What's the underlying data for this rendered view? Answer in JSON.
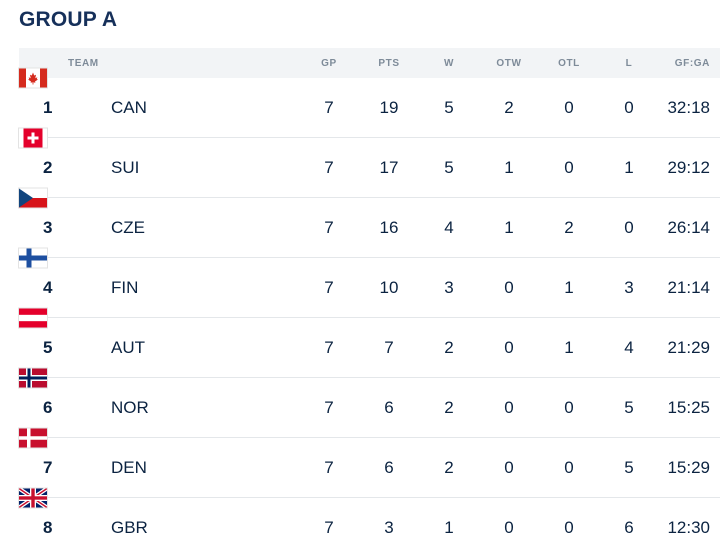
{
  "title": "GROUP A",
  "headers": {
    "team": "TEAM",
    "gp": "GP",
    "pts": "PTS",
    "w": "W",
    "otw": "OTW",
    "otl": "OTL",
    "l": "L",
    "gfga": "GF:GA"
  },
  "rows": [
    {
      "rank": "1",
      "team": "CAN",
      "flag": "canada-flag-icon",
      "gp": "7",
      "pts": "19",
      "w": "5",
      "otw": "2",
      "otl": "0",
      "l": "0",
      "gfga": "32:18"
    },
    {
      "rank": "2",
      "team": "SUI",
      "flag": "switzerland-flag-icon",
      "gp": "7",
      "pts": "17",
      "w": "5",
      "otw": "1",
      "otl": "0",
      "l": "1",
      "gfga": "29:12"
    },
    {
      "rank": "3",
      "team": "CZE",
      "flag": "czechia-flag-icon",
      "gp": "7",
      "pts": "16",
      "w": "4",
      "otw": "1",
      "otl": "2",
      "l": "0",
      "gfga": "26:14"
    },
    {
      "rank": "4",
      "team": "FIN",
      "flag": "finland-flag-icon",
      "gp": "7",
      "pts": "10",
      "w": "3",
      "otw": "0",
      "otl": "1",
      "l": "3",
      "gfga": "21:14"
    },
    {
      "rank": "5",
      "team": "AUT",
      "flag": "austria-flag-icon",
      "gp": "7",
      "pts": "7",
      "w": "2",
      "otw": "0",
      "otl": "1",
      "l": "4",
      "gfga": "21:29"
    },
    {
      "rank": "6",
      "team": "NOR",
      "flag": "norway-flag-icon",
      "gp": "7",
      "pts": "6",
      "w": "2",
      "otw": "0",
      "otl": "0",
      "l": "5",
      "gfga": "15:25"
    },
    {
      "rank": "7",
      "team": "DEN",
      "flag": "denmark-flag-icon",
      "gp": "7",
      "pts": "6",
      "w": "2",
      "otw": "0",
      "otl": "0",
      "l": "5",
      "gfga": "15:29"
    },
    {
      "rank": "8",
      "team": "GBR",
      "flag": "great-britain-flag-icon",
      "gp": "7",
      "pts": "3",
      "w": "1",
      "otw": "0",
      "otl": "0",
      "l": "6",
      "gfga": "12:30"
    }
  ],
  "colors": {
    "title": "#16305a",
    "text": "#0b2341",
    "header_bg": "#f2f4f6",
    "header_text": "#7e8b99",
    "divider": "#e4e7ea"
  }
}
